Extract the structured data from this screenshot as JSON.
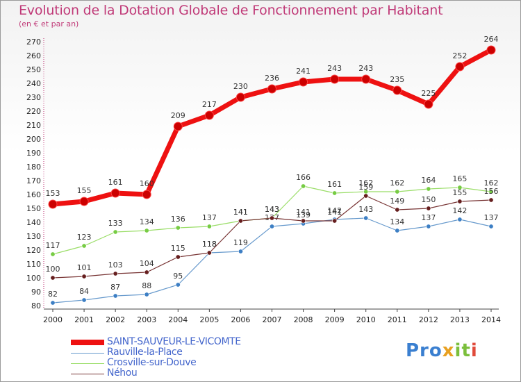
{
  "header": {
    "title": "Evolution de la Dotation Globale de Fonctionnement par Habitant",
    "subtitle": "(en € et par an)"
  },
  "logo": {
    "text": "Proxiti",
    "parts": [
      "Pro",
      "x",
      "it",
      "i"
    ]
  },
  "chart_data": {
    "type": "line",
    "title": "Evolution de la Dotation Globale de Fonctionnement par Habitant",
    "subtitle": "(en € et par an)",
    "xlabel": "",
    "ylabel": "",
    "ylim": [
      80,
      270
    ],
    "y_ticks": [
      80,
      90,
      100,
      110,
      120,
      130,
      140,
      150,
      160,
      170,
      180,
      190,
      200,
      210,
      220,
      230,
      240,
      250,
      260,
      270
    ],
    "grid": false,
    "legend_position": "bottom-left",
    "categories": [
      "2000",
      "2001",
      "2002",
      "2003",
      "2004",
      "2005",
      "2006",
      "2007",
      "2008",
      "2009",
      "2010",
      "2011",
      "2012",
      "2013",
      "2014"
    ],
    "series": [
      {
        "name": "SAINT-SAUVEUR-LE-VICOMTE",
        "color": "#ee1111",
        "marker": "#cc0000",
        "values": [
          153,
          155,
          161,
          160,
          209,
          217,
          230,
          236,
          241,
          243,
          243,
          235,
          225,
          252,
          264
        ]
      },
      {
        "name": "Rauville-la-Place",
        "color": "#6699cc",
        "marker": "#3d7fc4",
        "values": [
          82,
          84,
          87,
          88,
          95,
          118,
          119,
          137,
          139,
          142,
          143,
          134,
          137,
          142,
          137
        ]
      },
      {
        "name": "Crosville-sur-Douve",
        "color": "#99dd66",
        "marker": "#77cc44",
        "values": [
          117,
          123,
          133,
          134,
          136,
          137,
          141,
          143,
          166,
          161,
          162,
          162,
          164,
          165,
          162
        ]
      },
      {
        "name": "Néhou",
        "color": "#773333",
        "marker": "#661f1f",
        "values": [
          100,
          101,
          103,
          104,
          115,
          118,
          141,
          143,
          141,
          141,
          159,
          149,
          150,
          155,
          156
        ]
      }
    ]
  }
}
